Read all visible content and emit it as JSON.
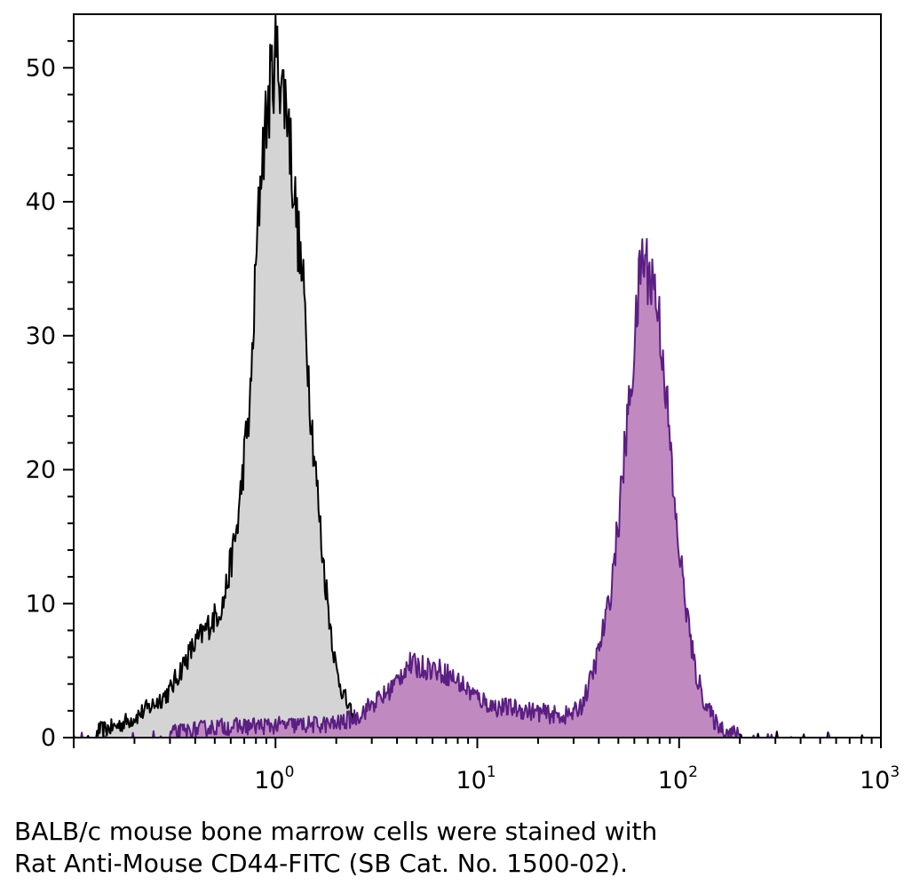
{
  "chart_data": {
    "type": "area",
    "x_scale": "log",
    "xlim": [
      0.1,
      1000
    ],
    "ylim": [
      0,
      54
    ],
    "x_ticks": [
      {
        "value": 1,
        "base": "10",
        "exp": "0"
      },
      {
        "value": 10,
        "base": "10",
        "exp": "1"
      },
      {
        "value": 100,
        "base": "10",
        "exp": "2"
      },
      {
        "value": 1000,
        "base": "10",
        "exp": "3"
      }
    ],
    "y_ticks": [
      0,
      10,
      20,
      30,
      40,
      50
    ],
    "grid": false,
    "series": [
      {
        "role": "control",
        "fill": "#d4d4d4",
        "stroke": "#000000",
        "points": [
          [
            0.13,
            0.5
          ],
          [
            0.16,
            0.8
          ],
          [
            0.2,
            1.5
          ],
          [
            0.25,
            2.5
          ],
          [
            0.3,
            3.5
          ],
          [
            0.35,
            5.5
          ],
          [
            0.4,
            7
          ],
          [
            0.5,
            9
          ],
          [
            0.55,
            10
          ],
          [
            0.6,
            13
          ],
          [
            0.65,
            16
          ],
          [
            0.7,
            21
          ],
          [
            0.75,
            25
          ],
          [
            0.8,
            35
          ],
          [
            0.85,
            43
          ],
          [
            0.9,
            46
          ],
          [
            0.95,
            49
          ],
          [
            1.0,
            51
          ],
          [
            1.05,
            50
          ],
          [
            1.1,
            48
          ],
          [
            1.15,
            47
          ],
          [
            1.2,
            43
          ],
          [
            1.3,
            37
          ],
          [
            1.4,
            32
          ],
          [
            1.5,
            24
          ],
          [
            1.6,
            19
          ],
          [
            1.7,
            14
          ],
          [
            1.85,
            9
          ],
          [
            2.0,
            5
          ],
          [
            2.2,
            3
          ],
          [
            2.4,
            1.5
          ],
          [
            2.6,
            0.8
          ],
          [
            3.0,
            0.3
          ],
          [
            3.5,
            0.1
          ]
        ]
      },
      {
        "role": "stained",
        "fill": "#c08ac1",
        "stroke": "#5b1e82",
        "points": [
          [
            0.3,
            0.3
          ],
          [
            0.5,
            0.8
          ],
          [
            1.0,
            0.9
          ],
          [
            2.0,
            1.0
          ],
          [
            2.5,
            1.5
          ],
          [
            3.0,
            2.5
          ],
          [
            3.5,
            3.2
          ],
          [
            4.0,
            4.2
          ],
          [
            4.5,
            5.5
          ],
          [
            5.0,
            5.3
          ],
          [
            6.0,
            5.2
          ],
          [
            7.0,
            4.8
          ],
          [
            8.0,
            4.2
          ],
          [
            10,
            3.0
          ],
          [
            12,
            2.3
          ],
          [
            15,
            2.2
          ],
          [
            18,
            2.0
          ],
          [
            22,
            1.8
          ],
          [
            26,
            1.6
          ],
          [
            30,
            1.8
          ],
          [
            33,
            2.5
          ],
          [
            36,
            4.0
          ],
          [
            40,
            6.5
          ],
          [
            45,
            10
          ],
          [
            50,
            16
          ],
          [
            55,
            23
          ],
          [
            60,
            29
          ],
          [
            65,
            36
          ],
          [
            70,
            35
          ],
          [
            75,
            34
          ],
          [
            80,
            31
          ],
          [
            85,
            27
          ],
          [
            90,
            22
          ],
          [
            95,
            17
          ],
          [
            100,
            14
          ],
          [
            110,
            9
          ],
          [
            120,
            5
          ],
          [
            135,
            2.5
          ],
          [
            150,
            1.2
          ],
          [
            170,
            0.5
          ],
          [
            200,
            0.2
          ]
        ]
      }
    ]
  },
  "caption": {
    "line1": "BALB/c mouse bone marrow cells were stained with",
    "line2": "Rat Anti-Mouse CD44-FITC (SB Cat. No. 1500-02)."
  }
}
